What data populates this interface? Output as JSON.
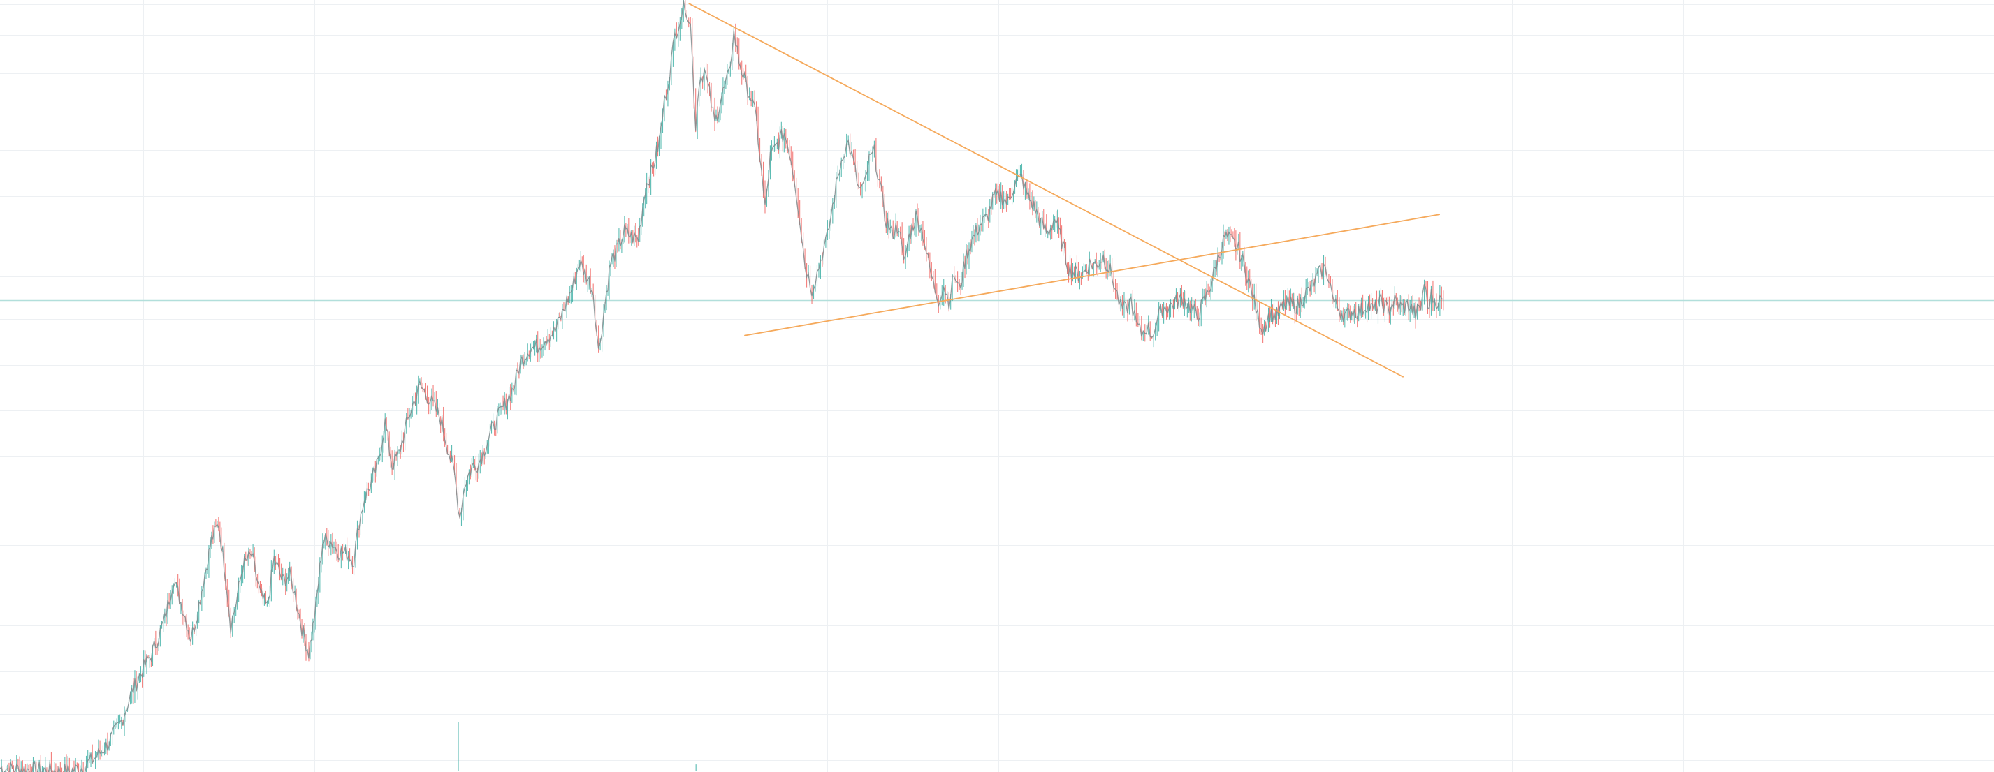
{
  "chart_data": {
    "type": "line",
    "title": "",
    "xlabel": "",
    "ylabel": "",
    "grid": true,
    "legend": "none",
    "xlim": [
      0,
      1000
    ],
    "ylim": [
      0,
      100
    ],
    "colors": {
      "background": "#ffffff",
      "grid": "#edf0f3",
      "price": "#7f8a8c",
      "up_candle": "#26a69a",
      "down_candle": "#ef5350",
      "trendline": "#f5a95b",
      "price_level_line": "#b2dfdb"
    },
    "grid_x": [
      72,
      158,
      244,
      330,
      416,
      502,
      588,
      674,
      760,
      846
    ],
    "grid_y": [
      1.5,
      7.5,
      13,
      19,
      24.5,
      29.5,
      35,
      41,
      47,
      53,
      59,
      64.5,
      70,
      75,
      81,
      86,
      91,
      96,
      100
    ],
    "price_level": 61.4,
    "series": [
      {
        "values": [
          [
            0,
            0.4
          ],
          [
            20,
            0.2
          ],
          [
            40,
            0.0
          ],
          [
            48,
            0.6
          ],
          [
            55,
            1.8
          ],
          [
            62,
            3.5
          ],
          [
            70,
            6.5
          ],
          [
            76,
            10.3
          ],
          [
            82,
            13.2
          ],
          [
            88,
            15.6
          ],
          [
            95,
            19.8
          ],
          [
            100,
            25.1
          ],
          [
            106,
            20.8
          ],
          [
            110,
            17.3
          ],
          [
            113,
            19.9
          ],
          [
            118,
            25.6
          ],
          [
            122,
            30.2
          ],
          [
            126,
            32.3
          ],
          [
            130,
            25.7
          ],
          [
            133,
            19.0
          ],
          [
            136,
            21.8
          ],
          [
            140,
            26.8
          ],
          [
            145,
            28.2
          ],
          [
            150,
            23.1
          ],
          [
            154,
            21.3
          ],
          [
            158,
            27.7
          ],
          [
            163,
            24.8
          ],
          [
            167,
            25.6
          ],
          [
            170,
            23.1
          ],
          [
            174,
            18.7
          ],
          [
            178,
            15.4
          ],
          [
            182,
            21.2
          ],
          [
            186,
            30.0
          ],
          [
            190,
            30.2
          ],
          [
            195,
            28.7
          ],
          [
            200,
            28.4
          ],
          [
            204,
            27.5
          ],
          [
            207,
            32.5
          ],
          [
            210,
            35.5
          ],
          [
            214,
            37.6
          ],
          [
            218,
            40.2
          ],
          [
            222,
            45.5
          ],
          [
            226,
            39.8
          ],
          [
            230,
            41.5
          ],
          [
            236,
            46.5
          ],
          [
            242,
            50.3
          ],
          [
            248,
            48.4
          ],
          [
            254,
            46.0
          ],
          [
            258,
            42.3
          ],
          [
            262,
            38.7
          ],
          [
            265,
            33.2
          ],
          [
            268,
            37.5
          ],
          [
            272,
            39.7
          ],
          [
            276,
            40.2
          ],
          [
            280,
            42.5
          ],
          [
            285,
            45.3
          ],
          [
            290,
            47.4
          ],
          [
            296,
            50.0
          ],
          [
            300,
            53.3
          ],
          [
            305,
            55.1
          ],
          [
            310,
            55.4
          ],
          [
            315,
            56.6
          ],
          [
            320,
            57.4
          ],
          [
            325,
            60.2
          ],
          [
            330,
            63.1
          ],
          [
            334,
            66.3
          ],
          [
            338,
            64.7
          ],
          [
            342,
            62.5
          ],
          [
            345,
            54.6
          ],
          [
            348,
            59.8
          ],
          [
            352,
            66.3
          ],
          [
            356,
            68.1
          ],
          [
            360,
            70.4
          ],
          [
            364,
            69.7
          ],
          [
            368,
            69.4
          ],
          [
            372,
            76.1
          ],
          [
            376,
            78.5
          ],
          [
            380,
            82.0
          ],
          [
            383,
            87.3
          ],
          [
            386,
            91.0
          ],
          [
            389,
            95.9
          ],
          [
            392,
            98.2
          ],
          [
            395,
            100.0
          ],
          [
            398,
            97.3
          ],
          [
            401,
            84.1
          ],
          [
            403,
            90.1
          ],
          [
            406,
            91.4
          ],
          [
            409,
            88.3
          ],
          [
            412,
            84.4
          ],
          [
            416,
            88.0
          ],
          [
            420,
            90.6
          ],
          [
            423,
            96.2
          ],
          [
            426,
            92.7
          ],
          [
            430,
            89.5
          ],
          [
            433,
            87.8
          ],
          [
            436,
            84.8
          ],
          [
            439,
            77.9
          ],
          [
            441,
            73.2
          ],
          [
            444,
            80.0
          ],
          [
            448,
            81.7
          ],
          [
            452,
            83.2
          ],
          [
            455,
            81.0
          ],
          [
            458,
            77.2
          ],
          [
            461,
            72.1
          ],
          [
            464,
            66.1
          ],
          [
            466,
            64.5
          ],
          [
            468,
            62.9
          ],
          [
            471,
            65.0
          ],
          [
            474,
            67.5
          ],
          [
            477,
            69.6
          ],
          [
            480,
            73.7
          ],
          [
            483,
            77.5
          ],
          [
            486,
            80.7
          ],
          [
            489,
            81.9
          ],
          [
            492,
            79.3
          ],
          [
            495,
            75.8
          ],
          [
            498,
            76.0
          ],
          [
            501,
            79.6
          ],
          [
            504,
            80.6
          ],
          [
            507,
            76.8
          ],
          [
            510,
            72.3
          ],
          [
            514,
            70.1
          ],
          [
            518,
            71.2
          ],
          [
            521,
            66.1
          ],
          [
            524,
            69.7
          ],
          [
            528,
            72.4
          ],
          [
            532,
            70.2
          ],
          [
            535,
            66.5
          ],
          [
            538,
            63.5
          ],
          [
            541,
            61.5
          ],
          [
            544,
            63.4
          ],
          [
            547,
            61.3
          ],
          [
            550,
            64.8
          ],
          [
            553,
            62.7
          ],
          [
            557,
            67.3
          ],
          [
            561,
            69.6
          ],
          [
            565,
            71.3
          ],
          [
            569,
            72.1
          ],
          [
            573,
            74.8
          ],
          [
            577,
            75.0
          ],
          [
            581,
            74.1
          ],
          [
            585,
            76.8
          ],
          [
            589,
            77.4
          ],
          [
            592,
            75.2
          ],
          [
            596,
            73.6
          ],
          [
            600,
            71.5
          ],
          [
            604,
            70.1
          ],
          [
            608,
            72.1
          ],
          [
            612,
            69.1
          ],
          [
            616,
            65.6
          ],
          [
            620,
            64.9
          ],
          [
            624,
            64.8
          ],
          [
            628,
            66.2
          ],
          [
            632,
            66.0
          ],
          [
            636,
            67.1
          ],
          [
            640,
            65.2
          ],
          [
            643,
            62.9
          ],
          [
            646,
            60.5
          ],
          [
            649,
            60.1
          ],
          [
            652,
            61.4
          ],
          [
            655,
            58.2
          ],
          [
            658,
            57.0
          ],
          [
            661,
            58.0
          ],
          [
            664,
            56.9
          ],
          [
            667,
            58.7
          ],
          [
            670,
            60.4
          ],
          [
            674,
            60.6
          ],
          [
            678,
            61.2
          ],
          [
            682,
            61.6
          ],
          [
            686,
            60.6
          ],
          [
            690,
            59.3
          ],
          [
            694,
            61.2
          ],
          [
            698,
            63.5
          ],
          [
            702,
            66.8
          ],
          [
            706,
            69.7
          ],
          [
            710,
            69.1
          ],
          [
            714,
            68.0
          ],
          [
            718,
            65.4
          ],
          [
            722,
            62.1
          ],
          [
            725,
            59.3
          ],
          [
            728,
            57.7
          ],
          [
            732,
            59.6
          ],
          [
            736,
            59.4
          ],
          [
            740,
            60.8
          ],
          [
            744,
            60.9
          ],
          [
            748,
            60.7
          ],
          [
            752,
            62.1
          ],
          [
            756,
            63.1
          ],
          [
            760,
            64.7
          ],
          [
            763,
            65.6
          ],
          [
            766,
            64.5
          ],
          [
            769,
            61.0
          ],
          [
            772,
            60.2
          ],
          [
            776,
            59.3
          ],
          [
            780,
            60.1
          ],
          [
            784,
            59.9
          ],
          [
            788,
            60.9
          ],
          [
            792,
            60.0
          ],
          [
            796,
            61.2
          ],
          [
            800,
            60.2
          ],
          [
            804,
            61.3
          ],
          [
            808,
            60.4
          ],
          [
            812,
            60.8
          ],
          [
            816,
            59.6
          ],
          [
            819,
            60.4
          ],
          [
            821,
            63.8
          ],
          [
            823,
            60.4
          ],
          [
            825,
            62.0
          ],
          [
            827,
            61.4
          ],
          [
            830,
            61.3
          ],
          [
            832,
            61.5
          ]
        ]
      }
    ],
    "volume_spikes": [
      {
        "x": 264,
        "value": 6.4
      },
      {
        "x": 401,
        "value": 0.9
      }
    ],
    "trendlines": [
      {
        "from": [
          397,
          100.1
        ],
        "to": [
          809,
          51.4
        ]
      },
      {
        "from": [
          429,
          56.8
        ],
        "to": [
          830,
          72.6
        ]
      }
    ]
  }
}
